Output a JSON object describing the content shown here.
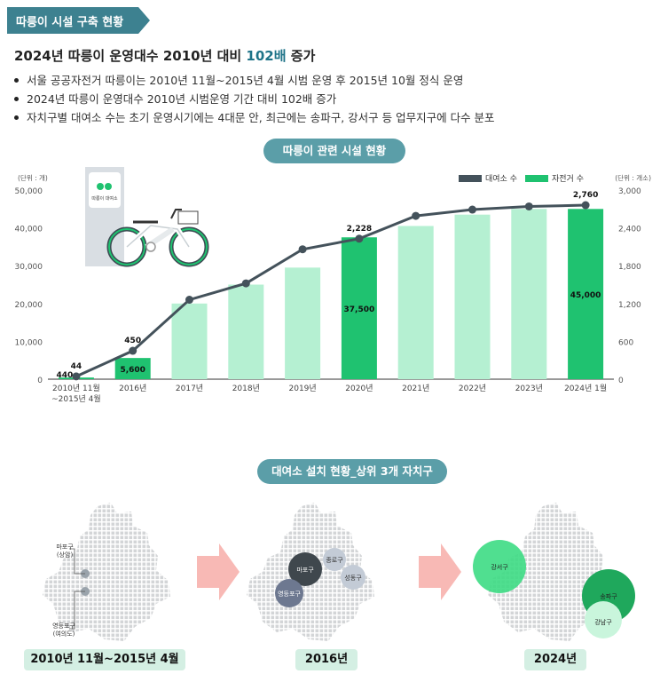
{
  "tag": {
    "label": "따릉이 시설 구축 현황"
  },
  "headline": {
    "prefix": "2024년 따릉이 운영대수 2010년 대비 ",
    "highlight": "102배",
    "suffix": " 증가"
  },
  "bullets": [
    "서울 공공자전거 따릉이는 2010년 11월~2015년 4월 시범 운영 후 2015년 10월 정식 운영",
    "2024년 따릉이 운영대수 2010년 시범운영 기간 대비 102배 증가",
    "자치구별 대여소 수는 초기 운영시기에는 4대문 안, 최근에는 송파구, 강서구 등 업무지구에 다수 분포"
  ],
  "section1": {
    "title": "따릉이 관련 시설 현황"
  },
  "section2": {
    "title": "대여소 설치 현황_상위 3개 자치구"
  },
  "kiosk_label": "따릉이 대여소",
  "colors": {
    "accent": "#3d8190",
    "bar_light": "#b5f0d2",
    "bar_dark": "#1fc270",
    "line": "#44525b"
  },
  "chart_data": {
    "type": "bar",
    "categories": [
      "2010년 11월\n~2015년 4월",
      "2016년",
      "2017년",
      "2018년",
      "2019년",
      "2020년",
      "2021년",
      "2022년",
      "2023년",
      "2024년 1월"
    ],
    "series": [
      {
        "name": "자전거 수",
        "axis": "left",
        "values": [
          440,
          5600,
          20000,
          25000,
          29500,
          37500,
          40500,
          43500,
          45000,
          45000
        ],
        "highlighted": [
          0,
          1,
          5,
          9
        ]
      },
      {
        "name": "대여소 수",
        "axis": "right",
        "type": "line",
        "values": [
          44,
          450,
          1260,
          1520,
          2060,
          2228,
          2590,
          2690,
          2740,
          2760
        ]
      }
    ],
    "left_axis": {
      "unit_label": "(단위 : 개)",
      "ticks": [
        "50,000",
        "40,000",
        "30,000",
        "20,000",
        "10,000",
        "0"
      ],
      "ylim": [
        0,
        50000
      ]
    },
    "right_axis": {
      "unit_label": "(단위 : 개소)",
      "ticks": [
        "3,000",
        "2,400",
        "1,800",
        "1,200",
        "600",
        "0"
      ],
      "ylim": [
        0,
        3000
      ]
    },
    "bar_labels": [
      {
        "index": 0,
        "text": "440"
      },
      {
        "index": 1,
        "text": "5,600"
      },
      {
        "index": 5,
        "text": "37,500"
      },
      {
        "index": 9,
        "text": "45,000"
      }
    ],
    "line_labels": [
      {
        "index": 0,
        "text": "44"
      },
      {
        "index": 1,
        "text": "450"
      },
      {
        "index": 5,
        "text": "2,228"
      },
      {
        "index": 9,
        "text": "2,760"
      }
    ],
    "legend": {
      "position": "top-right"
    }
  },
  "maps": [
    {
      "label": "2010년 11월~2015년 4월",
      "districts": [
        {
          "name": "마포구",
          "sub": "(상암)"
        },
        {
          "name": "영등포구",
          "sub": "(여의도)"
        }
      ]
    },
    {
      "label": "2016년",
      "districts": [
        {
          "name": "마포구"
        },
        {
          "name": "종로구"
        },
        {
          "name": "성동구"
        },
        {
          "name": "영등포구"
        }
      ]
    },
    {
      "label": "2024년",
      "districts": [
        {
          "name": "강서구"
        },
        {
          "name": "송파구"
        },
        {
          "name": "강남구"
        }
      ]
    }
  ]
}
